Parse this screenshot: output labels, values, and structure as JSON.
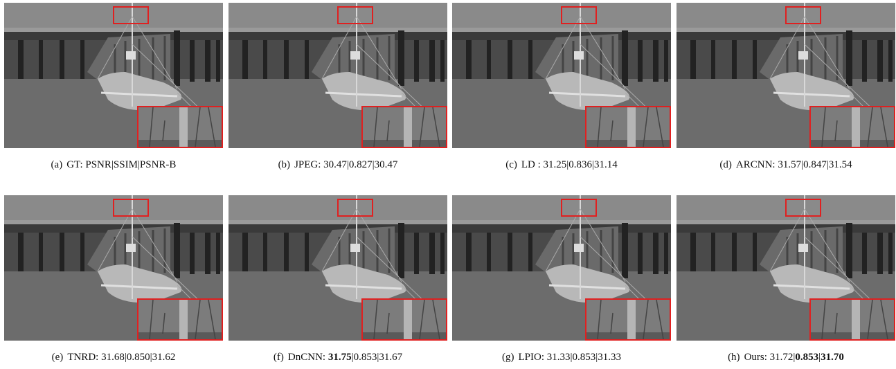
{
  "panels": [
    {
      "label": "(a)",
      "caption": [
        {
          "text": "GT: PSNR|SSIM|PSNR-B"
        }
      ]
    },
    {
      "label": "(b)",
      "caption": [
        {
          "text": "JPEG: 30.47|0.827|30.47"
        }
      ]
    },
    {
      "label": "(c)",
      "caption": [
        {
          "text": "LD : 31.25|0.836|31.14"
        }
      ]
    },
    {
      "label": "(d)",
      "caption": [
        {
          "text": "ARCNN: 31.57|0.847|31.54"
        }
      ]
    },
    {
      "label": "(e)",
      "caption": [
        {
          "text": "TNRD: 31.68|0.850|31.62"
        }
      ]
    },
    {
      "label": "(f)",
      "caption": [
        {
          "text": "DnCNN: "
        },
        {
          "text": "31.75",
          "bold": true
        },
        {
          "text": "|0.853|31.67"
        }
      ]
    },
    {
      "label": "(g)",
      "caption": [
        {
          "text": "LPIO: 31.33|0.853|31.33"
        }
      ]
    },
    {
      "label": "(h)",
      "caption": [
        {
          "text": "Ours: 31.72|"
        },
        {
          "text": "0.853",
          "bold": true
        },
        {
          "text": "|"
        },
        {
          "text": "31.70",
          "bold": true
        }
      ]
    }
  ]
}
